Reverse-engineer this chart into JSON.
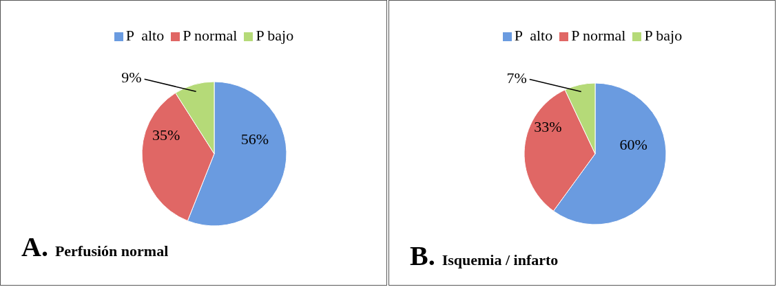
{
  "chart_data": [
    {
      "type": "pie",
      "title": "A.",
      "subtitle": "Perfusión normal",
      "categories": [
        "P  alto",
        "P normal",
        "P bajo"
      ],
      "values": [
        56,
        35,
        9
      ],
      "value_labels": [
        "56%",
        "35%",
        "9%"
      ],
      "colors": [
        "#6a9be0",
        "#e06765",
        "#b5da78"
      ],
      "legend": "top"
    },
    {
      "type": "pie",
      "title": "B.",
      "subtitle": "Isquemia / infarto",
      "categories": [
        "P  alto",
        "P normal",
        "P bajo"
      ],
      "values": [
        60,
        33,
        7
      ],
      "value_labels": [
        "60%",
        "33%",
        "7%"
      ],
      "colors": [
        "#6a9be0",
        "#e06765",
        "#b5da78"
      ],
      "legend": "top"
    }
  ]
}
